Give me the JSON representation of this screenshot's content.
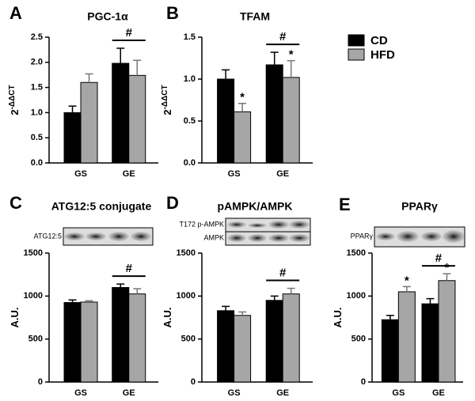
{
  "chart_data": [
    {
      "type": "bar",
      "panel_label": "A",
      "title": "PGC-1α",
      "y_label": "2",
      "y_label_superscript": "-ΔΔCT",
      "categories": [
        "GS",
        "GE"
      ],
      "series": [
        {
          "name": "CD",
          "color": "#000000",
          "values": [
            1.0,
            1.98
          ],
          "errors": [
            0.13,
            0.3
          ],
          "markers": [
            null,
            null
          ]
        },
        {
          "name": "HFD",
          "color": "#a6a6a6",
          "values": [
            1.6,
            1.74
          ],
          "errors": [
            0.17,
            0.3
          ],
          "markers": [
            null,
            null
          ]
        }
      ],
      "group_annotation": "#",
      "ylim": [
        0,
        2.5
      ],
      "yticks": [
        {
          "value": 0,
          "label": "0.0"
        },
        0.5,
        {
          "value": 1,
          "label": "1.0"
        },
        1.5,
        {
          "value": 2,
          "label": "2.0"
        },
        2.5
      ]
    },
    {
      "type": "bar",
      "panel_label": "B",
      "title": "TFAM",
      "y_label": "2",
      "y_label_superscript": "-ΔΔCT",
      "categories": [
        "GS",
        "GE"
      ],
      "series": [
        {
          "name": "CD",
          "color": "#000000",
          "values": [
            1.0,
            1.17
          ],
          "errors": [
            0.11,
            0.15
          ],
          "markers": [
            null,
            null
          ]
        },
        {
          "name": "HFD",
          "color": "#a6a6a6",
          "values": [
            0.61,
            1.02
          ],
          "errors": [
            0.1,
            0.2
          ],
          "markers": [
            "*",
            "*"
          ]
        }
      ],
      "group_annotation": "#",
      "ylim": [
        0,
        1.5
      ],
      "yticks": [
        {
          "value": 0,
          "label": "0.0"
        },
        0.5,
        {
          "value": 1,
          "label": "1.0"
        },
        1.5
      ]
    },
    {
      "type": "bar",
      "panel_label": "C",
      "title": "ATG12:5 conjugate",
      "y_label": "A.U.",
      "blot_labels": [
        "ATG12:5"
      ],
      "categories": [
        "GS",
        "GE"
      ],
      "series": [
        {
          "name": "CD",
          "color": "#000000",
          "values": [
            925,
            1100
          ],
          "errors": [
            30,
            40
          ],
          "markers": [
            null,
            null
          ]
        },
        {
          "name": "HFD",
          "color": "#a6a6a6",
          "values": [
            930,
            1025
          ],
          "errors": [
            15,
            60
          ],
          "markers": [
            null,
            null
          ]
        }
      ],
      "group_annotation": "#",
      "ylim": [
        0,
        1500
      ],
      "yticks": [
        0,
        500,
        1000,
        1500
      ]
    },
    {
      "type": "bar",
      "panel_label": "D",
      "title": "pAMPK/AMPK",
      "y_label": "A.U.",
      "blot_labels": [
        "T172 p-AMPK",
        "AMPK"
      ],
      "categories": [
        "GS",
        "GE"
      ],
      "series": [
        {
          "name": "CD",
          "color": "#000000",
          "values": [
            830,
            950
          ],
          "errors": [
            50,
            50
          ],
          "markers": [
            null,
            null
          ]
        },
        {
          "name": "HFD",
          "color": "#a6a6a6",
          "values": [
            775,
            1025
          ],
          "errors": [
            40,
            65
          ],
          "markers": [
            null,
            null
          ]
        }
      ],
      "group_annotation": "#",
      "ylim": [
        0,
        1500
      ],
      "yticks": [
        0,
        500,
        1000,
        1500
      ]
    },
    {
      "type": "bar",
      "panel_label": "E",
      "title": "PPARγ",
      "y_label": "A.U.",
      "blot_labels": [
        "PPARγ"
      ],
      "categories": [
        "GS",
        "GE"
      ],
      "series": [
        {
          "name": "CD",
          "color": "#000000",
          "values": [
            725,
            910
          ],
          "errors": [
            50,
            60
          ],
          "markers": [
            null,
            null
          ]
        },
        {
          "name": "HFD",
          "color": "#a6a6a6",
          "values": [
            1050,
            1180
          ],
          "errors": [
            60,
            80
          ],
          "markers": [
            "*",
            "*"
          ]
        }
      ],
      "group_annotation": "#",
      "ylim": [
        0,
        1500
      ],
      "yticks": [
        0,
        500,
        1000,
        1500
      ]
    }
  ]
}
